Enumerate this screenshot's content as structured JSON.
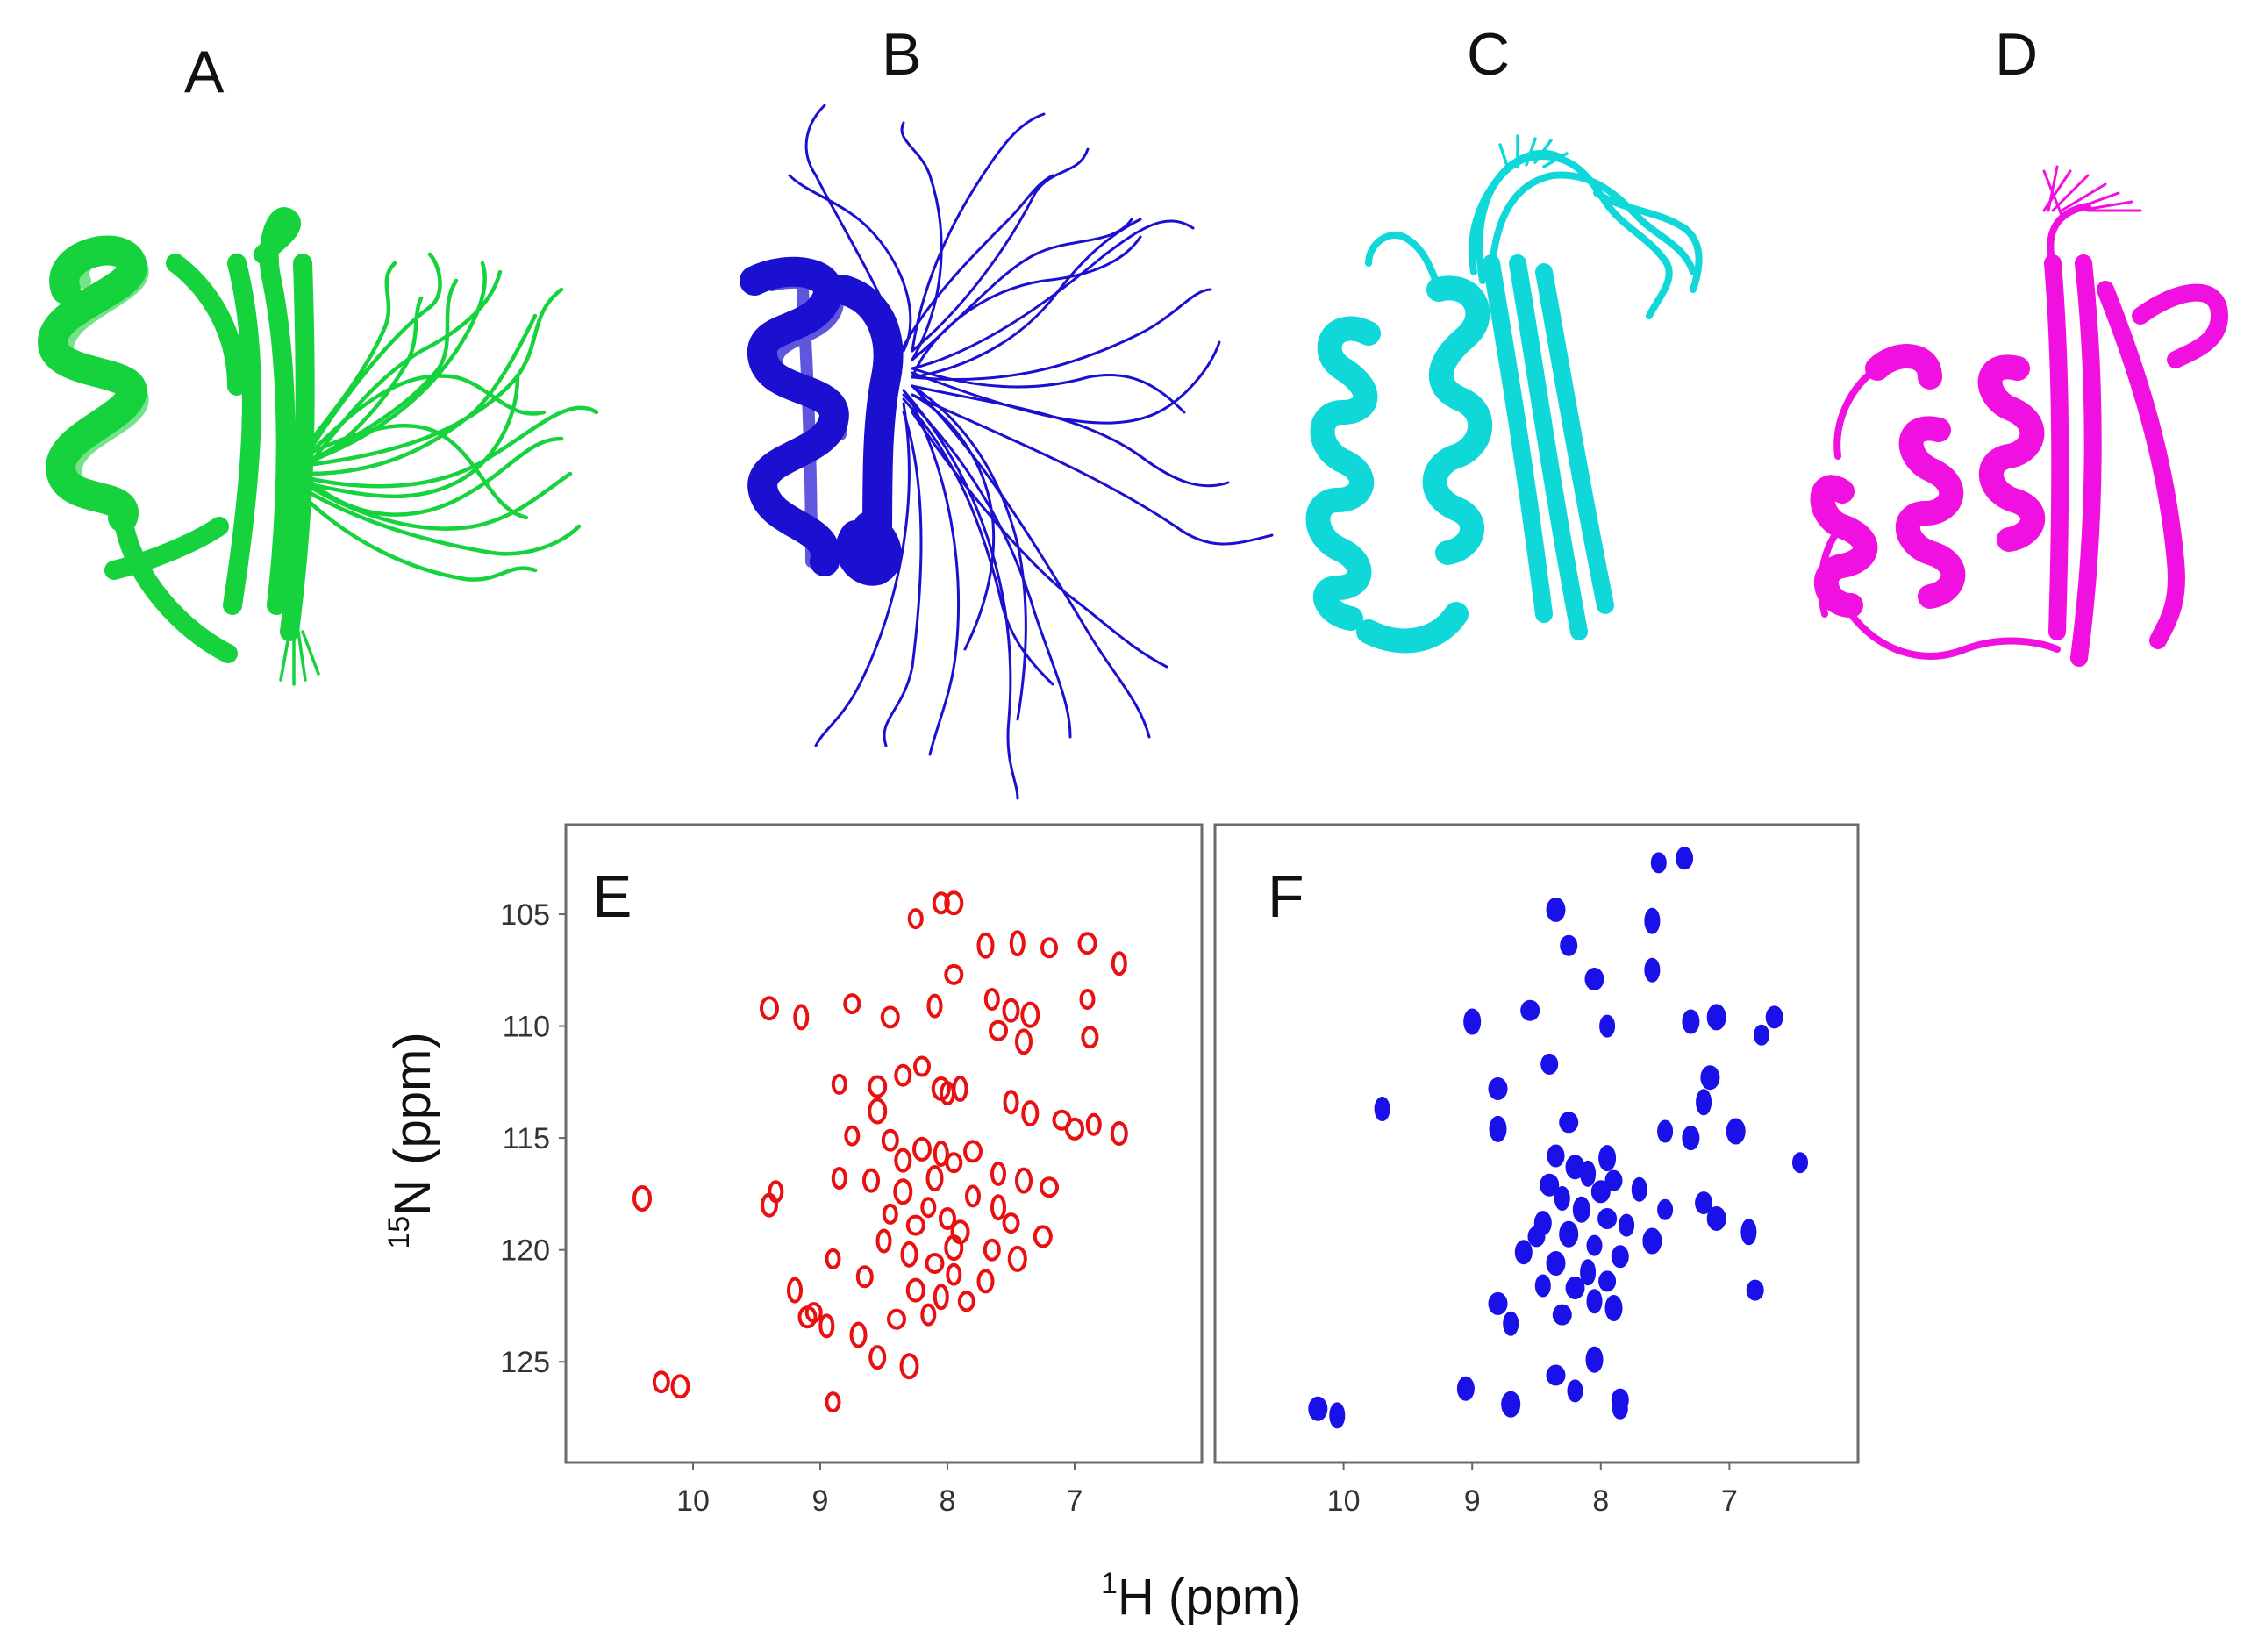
{
  "figure": {
    "panels": [
      {
        "letter": "A",
        "kind": "structure-ensemble",
        "color": "#16d23c"
      },
      {
        "letter": "B",
        "kind": "structure-ensemble",
        "color": "#1b10d0"
      },
      {
        "letter": "C",
        "kind": "structure-ensemble",
        "color": "#10d8d8"
      },
      {
        "letter": "D",
        "kind": "structure-ensemble",
        "color": "#f010e0"
      }
    ]
  },
  "chart_data": [
    {
      "type": "scatter",
      "panel_letter": "E",
      "color": "#e81010",
      "xlabel_sup": "1",
      "xlabel_main": "H (ppm)",
      "ylabel_sup": "15",
      "ylabel_main": "N (ppm)",
      "xlim": [
        11.0,
        6.0
      ],
      "ylim": [
        101.0,
        129.5
      ],
      "xticks": [
        10,
        9,
        8,
        7
      ],
      "yticks": [
        105,
        110,
        115,
        120,
        125
      ],
      "peaks": [
        [
          8.25,
          105.2
        ],
        [
          8.05,
          104.5
        ],
        [
          7.95,
          104.5
        ],
        [
          7.45,
          106.3
        ],
        [
          7.2,
          106.5
        ],
        [
          6.9,
          106.3
        ],
        [
          6.65,
          107.2
        ],
        [
          7.7,
          106.4
        ],
        [
          7.95,
          107.7
        ],
        [
          7.65,
          108.8
        ],
        [
          7.5,
          109.3
        ],
        [
          7.35,
          109.5
        ],
        [
          6.9,
          108.8
        ],
        [
          6.88,
          110.5
        ],
        [
          9.4,
          109.2
        ],
        [
          9.15,
          109.6
        ],
        [
          8.75,
          109.0
        ],
        [
          8.45,
          109.6
        ],
        [
          8.1,
          109.1
        ],
        [
          7.4,
          110.7
        ],
        [
          7.6,
          110.2
        ],
        [
          9.35,
          117.4
        ],
        [
          9.4,
          118.0
        ],
        [
          10.4,
          117.7
        ],
        [
          8.85,
          112.6
        ],
        [
          8.35,
          112.2
        ],
        [
          8.05,
          112.8
        ],
        [
          7.9,
          112.8
        ],
        [
          8.2,
          111.8
        ],
        [
          8.55,
          112.7
        ],
        [
          7.5,
          113.4
        ],
        [
          7.35,
          113.9
        ],
        [
          7.1,
          114.2
        ],
        [
          6.85,
          114.4
        ],
        [
          6.65,
          114.8
        ],
        [
          8.55,
          113.8
        ],
        [
          8.75,
          114.9
        ],
        [
          8.45,
          115.1
        ],
        [
          8.2,
          115.5
        ],
        [
          8.05,
          115.7
        ],
        [
          7.95,
          116.1
        ],
        [
          7.8,
          115.6
        ],
        [
          7.6,
          116.6
        ],
        [
          7.4,
          116.9
        ],
        [
          7.2,
          117.2
        ],
        [
          8.85,
          116.8
        ],
        [
          8.6,
          116.9
        ],
        [
          8.35,
          117.4
        ],
        [
          8.15,
          118.1
        ],
        [
          8.0,
          118.6
        ],
        [
          7.9,
          119.2
        ],
        [
          7.6,
          118.1
        ],
        [
          7.5,
          118.8
        ],
        [
          7.25,
          119.4
        ],
        [
          8.5,
          119.6
        ],
        [
          8.3,
          120.2
        ],
        [
          8.1,
          120.6
        ],
        [
          7.95,
          121.1
        ],
        [
          7.7,
          121.4
        ],
        [
          7.45,
          120.4
        ],
        [
          8.9,
          120.4
        ],
        [
          8.65,
          121.2
        ],
        [
          8.25,
          121.8
        ],
        [
          8.05,
          122.1
        ],
        [
          7.85,
          122.3
        ],
        [
          9.1,
          123.0
        ],
        [
          8.95,
          123.4
        ],
        [
          8.7,
          123.8
        ],
        [
          8.4,
          123.1
        ],
        [
          8.15,
          122.9
        ],
        [
          8.55,
          124.8
        ],
        [
          8.3,
          125.2
        ],
        [
          8.9,
          126.8
        ],
        [
          10.25,
          125.9
        ],
        [
          10.1,
          126.1
        ],
        [
          9.2,
          121.8
        ],
        [
          9.05,
          122.8
        ],
        [
          7.0,
          114.6
        ],
        [
          8.0,
          113.0
        ],
        [
          8.1,
          116.8
        ],
        [
          8.25,
          118.9
        ],
        [
          7.8,
          117.6
        ],
        [
          8.35,
          116.0
        ],
        [
          7.95,
          119.9
        ],
        [
          8.45,
          118.4
        ],
        [
          7.65,
          120.0
        ]
      ]
    },
    {
      "type": "scatter",
      "panel_letter": "F",
      "color": "#1a10e8",
      "xlim": [
        11.0,
        6.0
      ],
      "ylim": [
        101.0,
        129.5
      ],
      "xticks": [
        10,
        9,
        8,
        7
      ],
      "peaks": [
        [
          7.55,
          102.7
        ],
        [
          7.35,
          102.5
        ],
        [
          8.35,
          104.8
        ],
        [
          7.6,
          105.3
        ],
        [
          8.25,
          106.4
        ],
        [
          8.05,
          107.9
        ],
        [
          7.6,
          107.5
        ],
        [
          9.0,
          109.8
        ],
        [
          8.55,
          109.3
        ],
        [
          7.95,
          110.0
        ],
        [
          7.3,
          109.8
        ],
        [
          7.1,
          109.6
        ],
        [
          6.75,
          110.4
        ],
        [
          6.65,
          109.6
        ],
        [
          7.15,
          112.3
        ],
        [
          7.2,
          113.4
        ],
        [
          8.4,
          111.7
        ],
        [
          8.8,
          112.8
        ],
        [
          9.7,
          113.7
        ],
        [
          8.8,
          114.6
        ],
        [
          8.25,
          114.3
        ],
        [
          7.5,
          114.7
        ],
        [
          7.3,
          115.0
        ],
        [
          6.95,
          114.7
        ],
        [
          6.45,
          116.1
        ],
        [
          8.35,
          115.8
        ],
        [
          8.2,
          116.3
        ],
        [
          8.1,
          116.6
        ],
        [
          7.9,
          116.9
        ],
        [
          8.0,
          117.4
        ],
        [
          8.3,
          117.7
        ],
        [
          8.15,
          118.2
        ],
        [
          7.95,
          118.6
        ],
        [
          7.8,
          118.9
        ],
        [
          8.45,
          118.8
        ],
        [
          8.25,
          119.3
        ],
        [
          8.05,
          119.8
        ],
        [
          7.85,
          120.3
        ],
        [
          8.35,
          120.6
        ],
        [
          8.1,
          121.0
        ],
        [
          7.95,
          121.4
        ],
        [
          8.2,
          121.7
        ],
        [
          8.05,
          122.3
        ],
        [
          7.9,
          122.6
        ],
        [
          8.3,
          122.9
        ],
        [
          8.45,
          121.6
        ],
        [
          8.6,
          120.1
        ],
        [
          7.6,
          119.6
        ],
        [
          7.5,
          118.2
        ],
        [
          7.2,
          117.9
        ],
        [
          7.1,
          118.6
        ],
        [
          6.85,
          119.2
        ],
        [
          6.8,
          121.8
        ],
        [
          8.8,
          122.4
        ],
        [
          8.7,
          123.3
        ],
        [
          8.05,
          124.9
        ],
        [
          8.35,
          125.6
        ],
        [
          8.2,
          126.3
        ],
        [
          9.05,
          126.2
        ],
        [
          8.7,
          126.9
        ],
        [
          7.85,
          127.1
        ],
        [
          7.85,
          126.7
        ],
        [
          10.2,
          127.1
        ],
        [
          10.05,
          127.4
        ],
        [
          8.5,
          119.4
        ],
        [
          8.4,
          117.1
        ],
        [
          7.7,
          117.3
        ],
        [
          7.95,
          115.9
        ]
      ]
    }
  ]
}
